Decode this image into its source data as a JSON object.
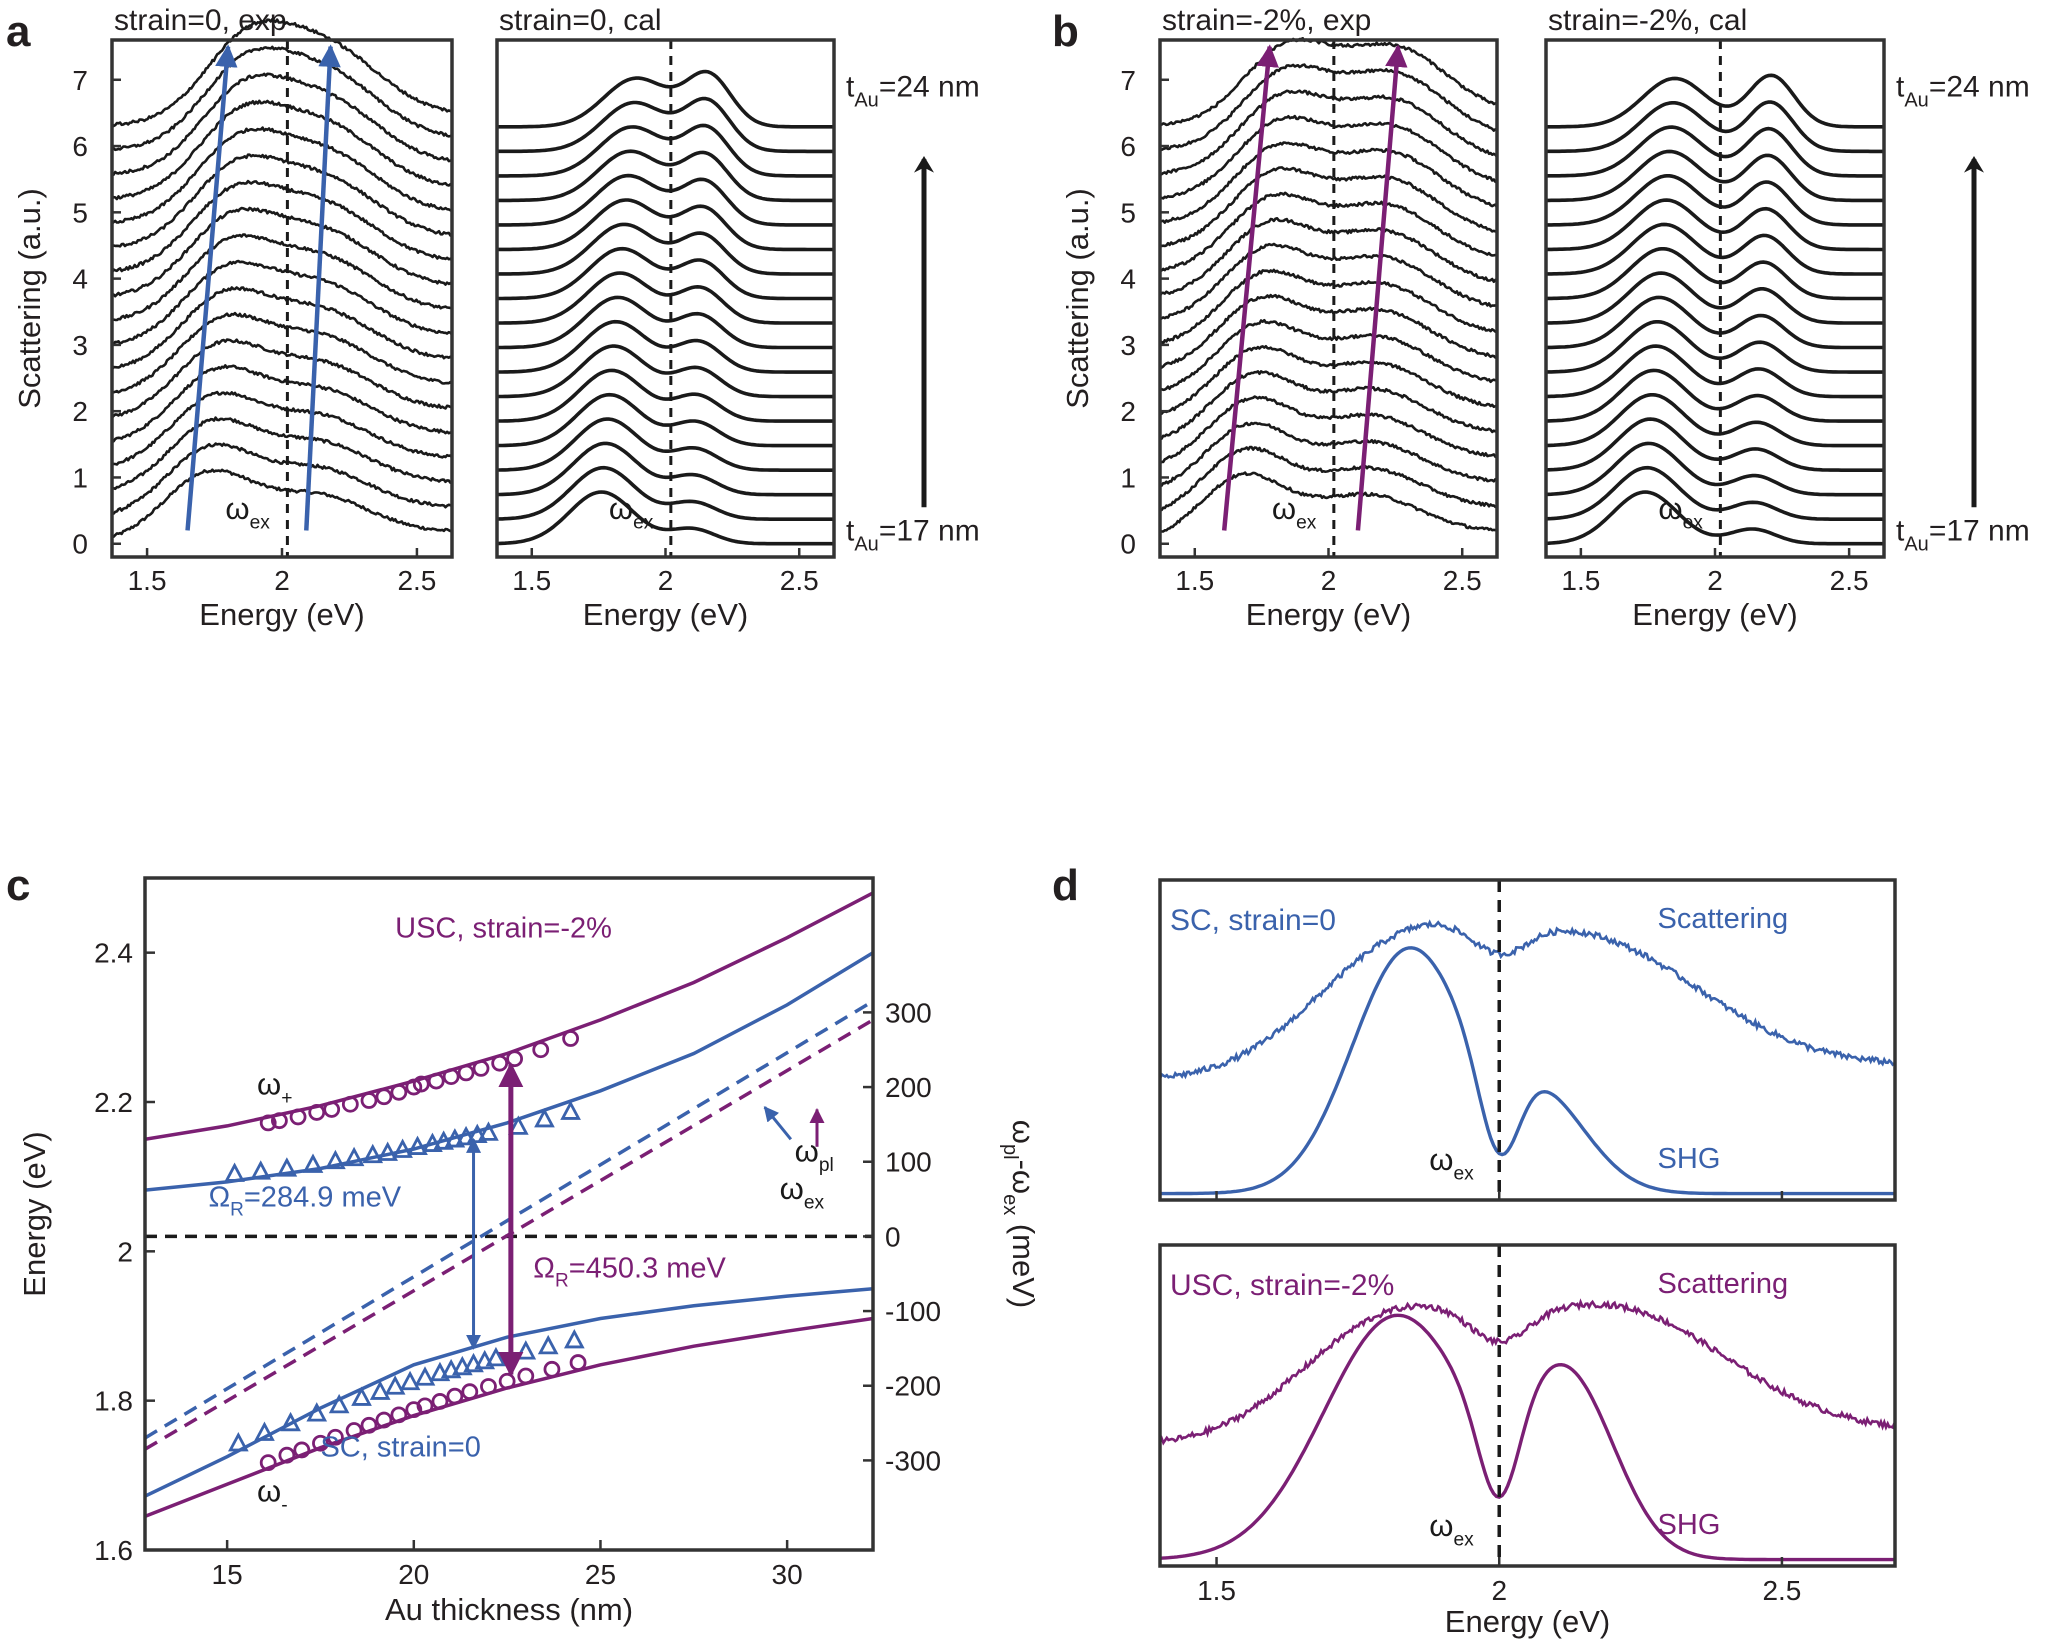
{
  "colors": {
    "blue": "#3a62ac",
    "purple": "#7b1f74",
    "black": "#1a1a1a"
  },
  "panel_labels": [
    "a",
    "b",
    "c",
    "d"
  ],
  "chart_data": [
    {
      "type": "line",
      "panel": "a",
      "title": "strain=0, exp",
      "xlabel": "Energy (eV)",
      "ylabel": "Scattering (a.u.)",
      "xlim": [
        1.37,
        2.63
      ],
      "ylim": [
        -0.2,
        7.6
      ],
      "xticks": [
        "1.5",
        "2",
        "2.5"
      ],
      "yticks": [
        "0",
        "1",
        "2",
        "3",
        "4",
        "5",
        "6",
        "7"
      ],
      "exciton_line_x": 2.02,
      "exciton_label": "ωex",
      "n_curves": 18,
      "curve_offset_step": 0.37,
      "lower_peak_energy_range": [
        1.72,
        1.86
      ],
      "upper_peak_energy_range": [
        2.12,
        2.16
      ],
      "guide_arrow_color": "blue"
    },
    {
      "type": "line",
      "panel": "a",
      "title": "strain=0, cal",
      "xlabel": "Energy (eV)",
      "xlim": [
        1.37,
        2.63
      ],
      "ylim": [
        -0.2,
        7.6
      ],
      "xticks": [
        "1.5",
        "2",
        "2.5"
      ],
      "exciton_line_x": 2.02,
      "exciton_label": "ωex",
      "n_curves": 18,
      "curve_offset_step": 0.37,
      "lower_peak_energy_range": [
        1.76,
        1.89
      ],
      "upper_peak_energy_range": [
        2.1,
        2.16
      ],
      "thickness_bottom_label": "tAu=17 nm",
      "thickness_top_label": "tAu=24 nm"
    },
    {
      "type": "line",
      "panel": "b",
      "title": "strain=-2%, exp",
      "xlabel": "Energy (eV)",
      "ylabel": "Scattering (a.u.)",
      "xlim": [
        1.37,
        2.63
      ],
      "ylim": [
        -0.2,
        7.6
      ],
      "xticks": [
        "1.5",
        "2",
        "2.5"
      ],
      "yticks": [
        "0",
        "1",
        "2",
        "3",
        "4",
        "5",
        "6",
        "7"
      ],
      "exciton_line_x": 2.02,
      "exciton_label": "ωex",
      "n_curves": 18,
      "curve_offset_step": 0.37,
      "lower_peak_energy_range": [
        1.68,
        1.84
      ],
      "upper_peak_energy_range": [
        2.14,
        2.24
      ],
      "guide_arrow_color": "purple"
    },
    {
      "type": "line",
      "panel": "b",
      "title": "strain=-2%, cal",
      "xlabel": "Energy (eV)",
      "xlim": [
        1.37,
        2.63
      ],
      "ylim": [
        -0.2,
        7.6
      ],
      "xticks": [
        "1.5",
        "2",
        "2.5"
      ],
      "exciton_line_x": 2.02,
      "exciton_label": "ωex",
      "n_curves": 18,
      "curve_offset_step": 0.37,
      "lower_peak_energy_range": [
        1.74,
        1.85
      ],
      "upper_peak_energy_range": [
        2.14,
        2.21
      ],
      "thickness_bottom_label": "tAu=17 nm",
      "thickness_top_label": "tAu=24 nm"
    },
    {
      "type": "scatter",
      "panel": "c",
      "xlabel": "Au thickness (nm)",
      "ylabel": "Energy (eV)",
      "y2label": "ωpl-ωex (meV)",
      "xlim": [
        12.8,
        32.3
      ],
      "ylim": [
        1.6,
        2.5
      ],
      "y2lim": [
        -300,
        300
      ],
      "xticks": [
        "15",
        "20",
        "25",
        "30"
      ],
      "yticks": [
        "1.6",
        "1.8",
        "2",
        "2.2",
        "2.4"
      ],
      "y2ticks": [
        "-300",
        "-200",
        "-100",
        "0",
        "100",
        "200",
        "300"
      ],
      "exciton_energy": 2.02,
      "labels": {
        "usc": "USC, strain=-2%",
        "sc": "SC, strain=0",
        "omega_plus": "ω+",
        "omega_minus": "ω-",
        "omega_pl": "ωpl",
        "omega_ex": "ωex",
        "rabi_sc": "ΩR=284.9 meV",
        "rabi_usc": "ΩR=450.3 meV"
      },
      "series": [
        {
          "name": "USC upper fit",
          "color": "purple",
          "style": "solid",
          "x": [
            12.8,
            15,
            17.5,
            20,
            22.5,
            25,
            27.5,
            30,
            32.3
          ],
          "y": [
            2.15,
            2.168,
            2.195,
            2.228,
            2.265,
            2.31,
            2.36,
            2.42,
            2.48
          ]
        },
        {
          "name": "USC lower fit",
          "color": "purple",
          "style": "solid",
          "x": [
            12.8,
            15,
            17.5,
            20,
            22.5,
            25,
            27.5,
            30,
            32.3
          ],
          "y": [
            1.645,
            1.688,
            1.737,
            1.78,
            1.817,
            1.848,
            1.873,
            1.893,
            1.91
          ]
        },
        {
          "name": "SC upper fit",
          "color": "blue",
          "style": "solid",
          "x": [
            12.8,
            15,
            17.5,
            20,
            22.5,
            25,
            27.5,
            30,
            32.3
          ],
          "y": [
            2.082,
            2.093,
            2.111,
            2.137,
            2.172,
            2.215,
            2.265,
            2.33,
            2.4
          ]
        },
        {
          "name": "SC lower fit",
          "color": "blue",
          "style": "solid",
          "x": [
            12.8,
            15,
            17.5,
            20,
            22.5,
            25,
            27.5,
            30,
            32.3
          ],
          "y": [
            1.672,
            1.725,
            1.79,
            1.848,
            1.885,
            1.91,
            1.927,
            1.94,
            1.95
          ]
        },
        {
          "name": "SC plasmon",
          "color": "blue",
          "style": "dashed",
          "x": [
            12.8,
            32.3
          ],
          "y": [
            1.75,
            2.335
          ]
        },
        {
          "name": "USC plasmon",
          "color": "purple",
          "style": "dashed",
          "x": [
            12.8,
            32.3
          ],
          "y": [
            1.735,
            2.31
          ]
        },
        {
          "name": "USC upper data",
          "color": "purple",
          "marker": "circle",
          "x": [
            16.1,
            16.4,
            16.9,
            17.4,
            17.8,
            18.3,
            18.8,
            19.2,
            19.6,
            20.0,
            20.2,
            20.6,
            21.0,
            21.4,
            21.8,
            22.3,
            22.7,
            23.4,
            24.2
          ],
          "y": [
            2.172,
            2.175,
            2.18,
            2.186,
            2.19,
            2.197,
            2.202,
            2.207,
            2.213,
            2.22,
            2.224,
            2.228,
            2.234,
            2.239,
            2.245,
            2.252,
            2.258,
            2.27,
            2.285
          ]
        },
        {
          "name": "USC lower data",
          "color": "purple",
          "marker": "circle",
          "x": [
            16.1,
            16.6,
            17.0,
            17.5,
            17.9,
            18.4,
            18.8,
            19.2,
            19.6,
            20.0,
            20.3,
            20.7,
            21.1,
            21.5,
            22.0,
            22.5,
            23.0,
            23.7,
            24.4
          ],
          "y": [
            1.717,
            1.727,
            1.734,
            1.743,
            1.751,
            1.76,
            1.767,
            1.774,
            1.781,
            1.788,
            1.793,
            1.799,
            1.806,
            1.812,
            1.819,
            1.826,
            1.833,
            1.842,
            1.851
          ]
        },
        {
          "name": "SC upper data",
          "color": "blue",
          "marker": "triangle",
          "x": [
            15.2,
            15.9,
            16.6,
            17.3,
            17.9,
            18.4,
            18.9,
            19.3,
            19.7,
            20.1,
            20.5,
            20.8,
            21.1,
            21.4,
            21.7,
            22.0,
            22.8,
            23.5,
            24.2
          ],
          "y": [
            2.103,
            2.106,
            2.11,
            2.115,
            2.12,
            2.124,
            2.128,
            2.131,
            2.135,
            2.139,
            2.143,
            2.146,
            2.149,
            2.152,
            2.155,
            2.158,
            2.166,
            2.176,
            2.186
          ]
        },
        {
          "name": "SC lower data",
          "color": "blue",
          "marker": "triangle",
          "x": [
            15.3,
            16.0,
            16.7,
            17.4,
            18.0,
            18.6,
            19.1,
            19.5,
            19.9,
            20.3,
            20.7,
            21.0,
            21.3,
            21.6,
            21.9,
            22.2,
            23.0,
            23.6,
            24.3
          ],
          "y": [
            1.742,
            1.756,
            1.769,
            1.782,
            1.793,
            1.803,
            1.811,
            1.818,
            1.824,
            1.83,
            1.836,
            1.84,
            1.844,
            1.848,
            1.852,
            1.856,
            1.865,
            1.872,
            1.88
          ]
        }
      ]
    },
    {
      "type": "line",
      "panel": "d",
      "xlabel": "Energy (eV)",
      "xlim": [
        1.4,
        2.7
      ],
      "xticks": [
        "1.5",
        "2",
        "2.5"
      ],
      "exciton_line_x": 2.0,
      "subpanels": [
        {
          "label": "SC, strain=0",
          "color": "blue",
          "exciton_label": "ωex",
          "series": [
            {
              "name": "Scattering",
              "baseline": 0.42,
              "lower_peak": 1.82,
              "upper_peak": 2.16,
              "dip": 2.0
            },
            {
              "name": "SHG",
              "baseline": 0.02,
              "lower_peak": 1.84,
              "upper_peak": 2.07,
              "dip": 2.0
            }
          ]
        },
        {
          "label": "USC, strain=-2%",
          "color": "purple",
          "exciton_label": "ωex",
          "series": [
            {
              "name": "Scattering",
              "baseline": 0.42,
              "lower_peak": 1.8,
              "upper_peak": 2.2,
              "dip": 2.0
            },
            {
              "name": "SHG",
              "baseline": 0.02,
              "lower_peak": 1.82,
              "upper_peak": 2.12,
              "dip": 2.0
            }
          ]
        }
      ]
    }
  ]
}
